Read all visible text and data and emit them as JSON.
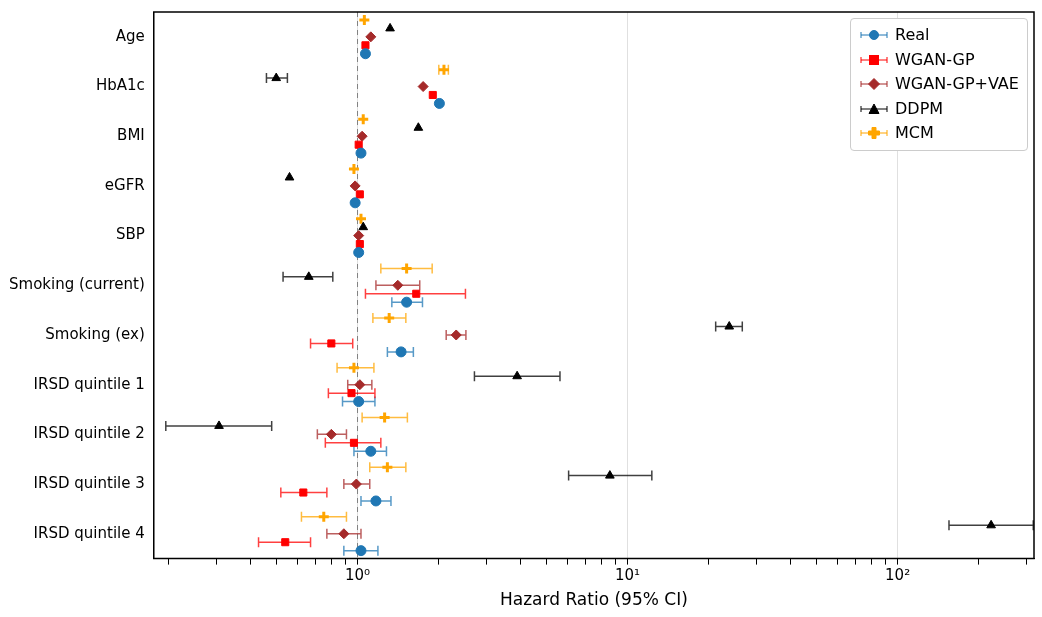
{
  "chart_data": {
    "type": "scatter",
    "orientation": "horizontal",
    "xlabel": "Hazard Ratio (95% CI)",
    "categories": [
      "Age",
      "HbA1c",
      "BMI",
      "eGFR",
      "SBP",
      "Smoking (current)",
      "Smoking (ex)",
      "IRSD quintile 1",
      "IRSD quintile 2",
      "IRSD quintile 3",
      "IRSD quintile 4"
    ],
    "log": "x",
    "xlim": [
      0.176,
      320
    ],
    "xticks": [
      {
        "value": 0.2,
        "label": null
      },
      {
        "value": 0.3,
        "label": null
      },
      {
        "value": 0.4,
        "label": null
      },
      {
        "value": 0.5,
        "label": null
      },
      {
        "value": 0.6,
        "label": null
      },
      {
        "value": 0.7,
        "label": null
      },
      {
        "value": 0.8,
        "label": null
      },
      {
        "value": 0.9,
        "label": null
      },
      {
        "value": 1,
        "label": "10⁰"
      },
      {
        "value": 2,
        "label": null
      },
      {
        "value": 3,
        "label": null
      },
      {
        "value": 4,
        "label": null
      },
      {
        "value": 5,
        "label": null
      },
      {
        "value": 6,
        "label": null
      },
      {
        "value": 7,
        "label": null
      },
      {
        "value": 8,
        "label": null
      },
      {
        "value": 9,
        "label": null
      },
      {
        "value": 10,
        "label": "10¹"
      },
      {
        "value": 20,
        "label": null
      },
      {
        "value": 30,
        "label": null
      },
      {
        "value": 40,
        "label": null
      },
      {
        "value": 50,
        "label": null
      },
      {
        "value": 60,
        "label": null
      },
      {
        "value": 70,
        "label": null
      },
      {
        "value": 80,
        "label": null
      },
      {
        "value": 90,
        "label": null
      },
      {
        "value": 100,
        "label": "10²"
      },
      {
        "value": 200,
        "label": null
      },
      {
        "value": 300,
        "label": null
      }
    ],
    "grid": "x",
    "legend": "top right",
    "ref_lines": [
      {
        "axis": "x",
        "value": 1,
        "color": "#808080",
        "line_style": "dashed"
      }
    ],
    "series": [
      {
        "name": "Real",
        "color": "#1f77b4",
        "marker": "circle",
        "values": [
          1.07,
          2.01,
          1.03,
          0.98,
          1.01,
          1.52,
          1.45,
          1.01,
          1.12,
          1.17,
          1.03
        ],
        "errors": [
          null,
          null,
          null,
          null,
          null,
          [
            1.34,
            1.74
          ],
          [
            1.29,
            1.61
          ],
          [
            0.88,
            1.16
          ],
          [
            0.97,
            1.28
          ],
          [
            1.03,
            1.33
          ],
          [
            0.89,
            1.19
          ]
        ]
      },
      {
        "name": "WGAN-GP",
        "color": "#ff0000",
        "marker": "square",
        "values": [
          1.07,
          1.9,
          1.01,
          1.02,
          1.02,
          1.65,
          0.8,
          0.95,
          0.97,
          0.63,
          0.54
        ],
        "errors": [
          null,
          null,
          null,
          null,
          null,
          [
            1.07,
            2.51
          ],
          [
            0.67,
            0.96
          ],
          [
            0.78,
            1.16
          ],
          [
            0.76,
            1.22
          ],
          [
            0.52,
            0.77
          ],
          [
            0.43,
            0.67
          ]
        ]
      },
      {
        "name": "WGAN-GP+VAE",
        "color": "#a52a2a",
        "marker": "diamond",
        "values": [
          1.12,
          1.75,
          1.04,
          0.98,
          1.01,
          1.41,
          2.32,
          1.02,
          0.8,
          0.99,
          0.89
        ],
        "errors": [
          null,
          null,
          null,
          null,
          null,
          [
            1.17,
            1.7
          ],
          [
            2.13,
            2.52
          ],
          [
            0.92,
            1.13
          ],
          [
            0.71,
            0.91
          ],
          [
            0.89,
            1.11
          ],
          [
            0.77,
            1.03
          ]
        ]
      },
      {
        "name": "DDPM",
        "color": "#000000",
        "marker": "triangle",
        "values": [
          1.32,
          0.5,
          1.68,
          0.56,
          1.05,
          0.66,
          23.8,
          3.9,
          0.307,
          8.6,
          222
        ],
        "errors": [
          null,
          [
            0.46,
            0.55
          ],
          null,
          null,
          null,
          [
            0.53,
            0.81
          ],
          [
            21.2,
            26.6
          ],
          [
            2.71,
            5.62
          ],
          [
            0.195,
            0.481
          ],
          [
            6.05,
            12.3
          ],
          [
            155,
            318
          ]
        ]
      },
      {
        "name": "MCM",
        "color": "#ffa500",
        "marker": "cross",
        "values": [
          1.06,
          2.09,
          1.05,
          0.97,
          1.03,
          1.52,
          1.31,
          0.97,
          1.26,
          1.29,
          0.75
        ],
        "errors": [
          null,
          [
            2.0,
            2.17
          ],
          null,
          null,
          null,
          [
            1.22,
            1.89
          ],
          [
            1.14,
            1.51
          ],
          [
            0.84,
            1.15
          ],
          [
            1.04,
            1.53
          ],
          [
            1.11,
            1.51
          ],
          [
            0.62,
            0.91
          ]
        ]
      }
    ]
  }
}
